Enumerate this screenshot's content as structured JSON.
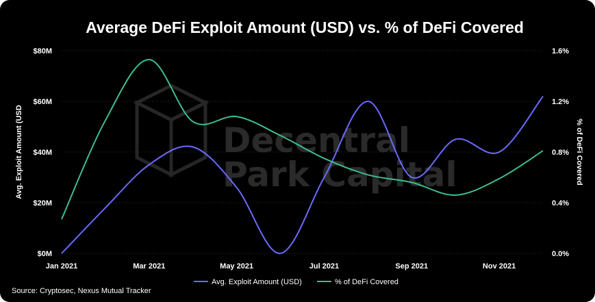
{
  "chart_data": {
    "type": "line",
    "title": "Average DeFi Exploit Amount (USD) vs. % of DeFi Covered",
    "ylabel_left": "Avg. Exploit Amount (USD",
    "ylabel_right": "% of DeFi Covered",
    "source": "Source: Cryptosec, Nexus Mutual Tracker",
    "watermark": [
      "Decentral",
      "Park Capital"
    ],
    "x_tick_labels": [
      "Jan 2021",
      "Mar 2021",
      "May 2021",
      "Jul 2021",
      "Sep 2021",
      "Nov 2021"
    ],
    "y_left": {
      "range": [
        0,
        80
      ],
      "ticks": [
        0,
        20,
        40,
        60,
        80
      ],
      "tick_labels": [
        "$0M",
        "$20M",
        "$40M",
        "$60M",
        "$80M"
      ]
    },
    "y_right": {
      "range": [
        0,
        1.6
      ],
      "ticks": [
        0,
        0.4,
        0.8,
        1.2,
        1.6
      ],
      "tick_labels": [
        "0.0%",
        "0.4%",
        "0.8%",
        "1.2%",
        "1.6%"
      ]
    },
    "legend_position": "bottom-center",
    "series": [
      {
        "name": "Avg. Exploit Amount (USD)",
        "axis": "left",
        "color": "#6b6bff",
        "points": [
          [
            0,
            0
          ],
          [
            1,
            18
          ],
          [
            2,
            35
          ],
          [
            3,
            42
          ],
          [
            4,
            26
          ],
          [
            5,
            0
          ],
          [
            6,
            30
          ],
          [
            7,
            60
          ],
          [
            8,
            30
          ],
          [
            9,
            45
          ],
          [
            10,
            40
          ],
          [
            11,
            62
          ]
        ]
      },
      {
        "name": "% of DeFi Covered",
        "axis": "right",
        "color": "#3fbf8f",
        "points": [
          [
            0,
            0.27
          ],
          [
            1,
            1.05
          ],
          [
            2,
            1.53
          ],
          [
            3,
            1.04
          ],
          [
            4,
            1.08
          ],
          [
            5,
            0.93
          ],
          [
            6,
            0.75
          ],
          [
            7,
            0.62
          ],
          [
            8,
            0.56
          ],
          [
            9,
            0.46
          ],
          [
            10,
            0.59
          ],
          [
            11,
            0.81
          ]
        ]
      }
    ]
  }
}
